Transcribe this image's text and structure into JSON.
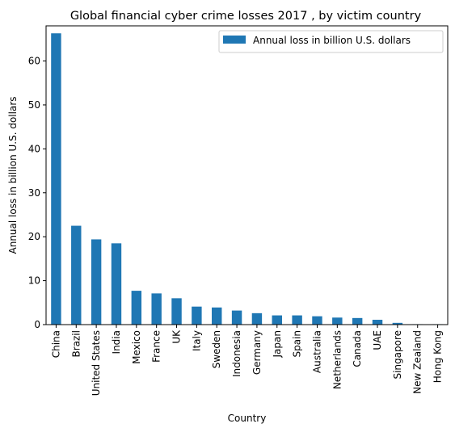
{
  "chart_data": {
    "type": "bar",
    "title": "Global financial cyber crime losses 2017 , by victim country",
    "xlabel": "Country",
    "ylabel": "Annual loss in billion U.S. dollars",
    "ylim": [
      0,
      68
    ],
    "yticks": [
      0,
      10,
      20,
      30,
      40,
      50,
      60
    ],
    "grid": false,
    "legend_position": "top-right",
    "categories": [
      "China",
      "Brazil",
      "United States",
      "India",
      "Mexico",
      "France",
      "UK",
      "Italy",
      "Sweden",
      "Indonesia",
      "Germany",
      "Japan",
      "Spain",
      "Australia",
      "Netherlands",
      "Canada",
      "UAE",
      "Singapore",
      "New Zealand",
      "Hong Kong"
    ],
    "series": [
      {
        "name": "Annual loss in billion U.S. dollars",
        "color": "#1f77b4",
        "values": [
          66.3,
          22.5,
          19.4,
          18.5,
          7.7,
          7.1,
          6.0,
          4.1,
          3.9,
          3.2,
          2.6,
          2.1,
          2.1,
          1.9,
          1.6,
          1.5,
          1.1,
          0.4,
          0.1,
          0.1
        ]
      }
    ]
  }
}
